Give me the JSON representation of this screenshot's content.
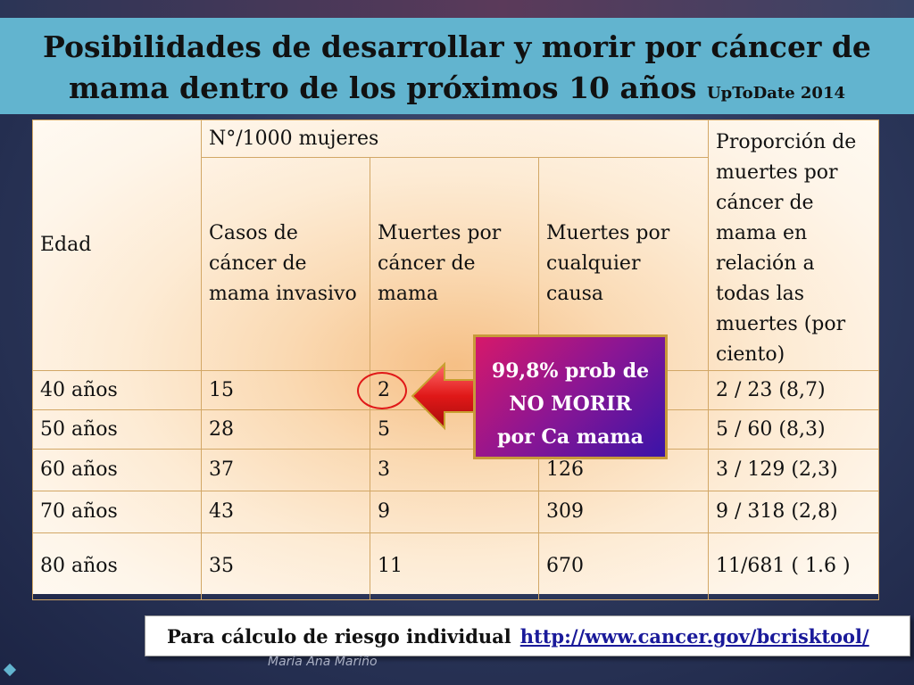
{
  "slide": {
    "title_line1": "Posibilidades de desarrollar y morir por cáncer de",
    "title_line2": "mama dentro de los próximos 10 años",
    "title_source": "UpToDate 2014"
  },
  "table": {
    "col_age": "Edad",
    "col_group": "N°/1000 mujeres",
    "col_cases": "Casos de cáncer de mama invasivo",
    "col_bc_deaths": "Muertes por cáncer de mama",
    "col_all_deaths": "Muertes por cualquier causa",
    "col_proportion": "Proporción de muertes por cáncer de mama en relación a todas las muertes (por ciento)",
    "rows": [
      {
        "age": "40 años",
        "cases": "15",
        "bc_deaths": "2",
        "all_deaths": "",
        "proportion": "2 / 23 (8,7)"
      },
      {
        "age": "50 años",
        "cases": "28",
        "bc_deaths": "5",
        "all_deaths": "",
        "proportion": "5 / 60 (8,3)"
      },
      {
        "age": "60 años",
        "cases": "37",
        "bc_deaths": "3",
        "all_deaths": "126",
        "proportion": "3 / 129 (2,3)"
      },
      {
        "age": "70 años",
        "cases": "43",
        "bc_deaths": "9",
        "all_deaths": "309",
        "proportion": "9 / 318 (2,8)"
      },
      {
        "age": "80 años",
        "cases": "35",
        "bc_deaths": "11",
        "all_deaths": "670",
        "proportion": "11/681 ( 1.6 )"
      }
    ]
  },
  "callout": {
    "line1": "99,8% prob de",
    "line2": "NO MORIR",
    "line3": "por Ca mama"
  },
  "footer": {
    "label": "Para cálculo de riesgo individual",
    "link": "http://www.cancer.gov/bcrisktool/"
  },
  "author": "María Ana Mariño",
  "colors": {
    "title_bar": "#62b4cf",
    "callout_start": "#d6186a",
    "callout_end": "#3a14a8",
    "arrow": "#e01818",
    "link": "#1a1a9a"
  }
}
